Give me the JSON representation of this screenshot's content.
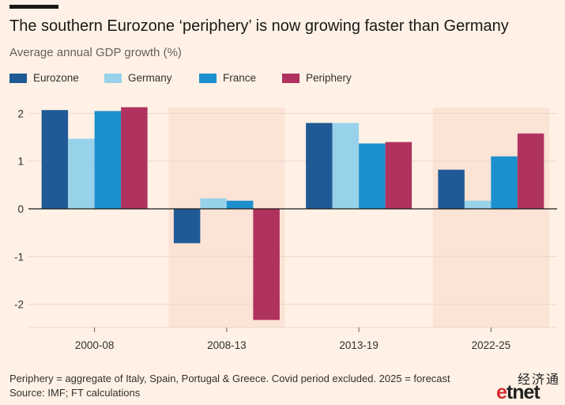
{
  "title": "The southern Eurozone ‘periphery’ is now growing faster than Germany",
  "subtitle": "Average annual GDP growth (%)",
  "footnote": "Periphery = aggregate of Italy, Spain, Portugal & Greece. Covid period excluded. 2025 = forecast",
  "source": "Source: IMF; FT calculations",
  "watermark": {
    "chinese": "经济通",
    "logo_e": "e",
    "logo_rest": "tnet"
  },
  "colors": {
    "background": "#fff1e5",
    "highlight": "#fbe3d5",
    "gridline": "#e4d8ce",
    "zero_line": "#1a1817"
  },
  "chart_data": {
    "type": "bar",
    "categories": [
      "2000-08",
      "2008-13",
      "2013-19",
      "2022-25"
    ],
    "highlighted_categories": [
      "2008-13",
      "2022-25"
    ],
    "series": [
      {
        "name": "Eurozone",
        "color": "#1f5a96",
        "values": [
          2.07,
          -0.72,
          1.8,
          0.82
        ]
      },
      {
        "name": "Germany",
        "color": "#97d2ea",
        "values": [
          1.47,
          0.22,
          1.8,
          0.17
        ]
      },
      {
        "name": "France",
        "color": "#1c8fce",
        "values": [
          2.05,
          0.17,
          1.37,
          1.1
        ]
      },
      {
        "name": "Periphery",
        "color": "#b0325e",
        "values": [
          2.13,
          -2.33,
          1.4,
          1.58
        ]
      }
    ],
    "ylim": [
      -2.5,
      2.2
    ],
    "yticks": [
      2,
      1,
      0,
      -1,
      -2
    ],
    "ytick_labels": [
      "2",
      "1",
      "0",
      "-1",
      "-2"
    ],
    "xlabel": "",
    "ylabel": "",
    "grid": true,
    "legend_position": "top"
  }
}
